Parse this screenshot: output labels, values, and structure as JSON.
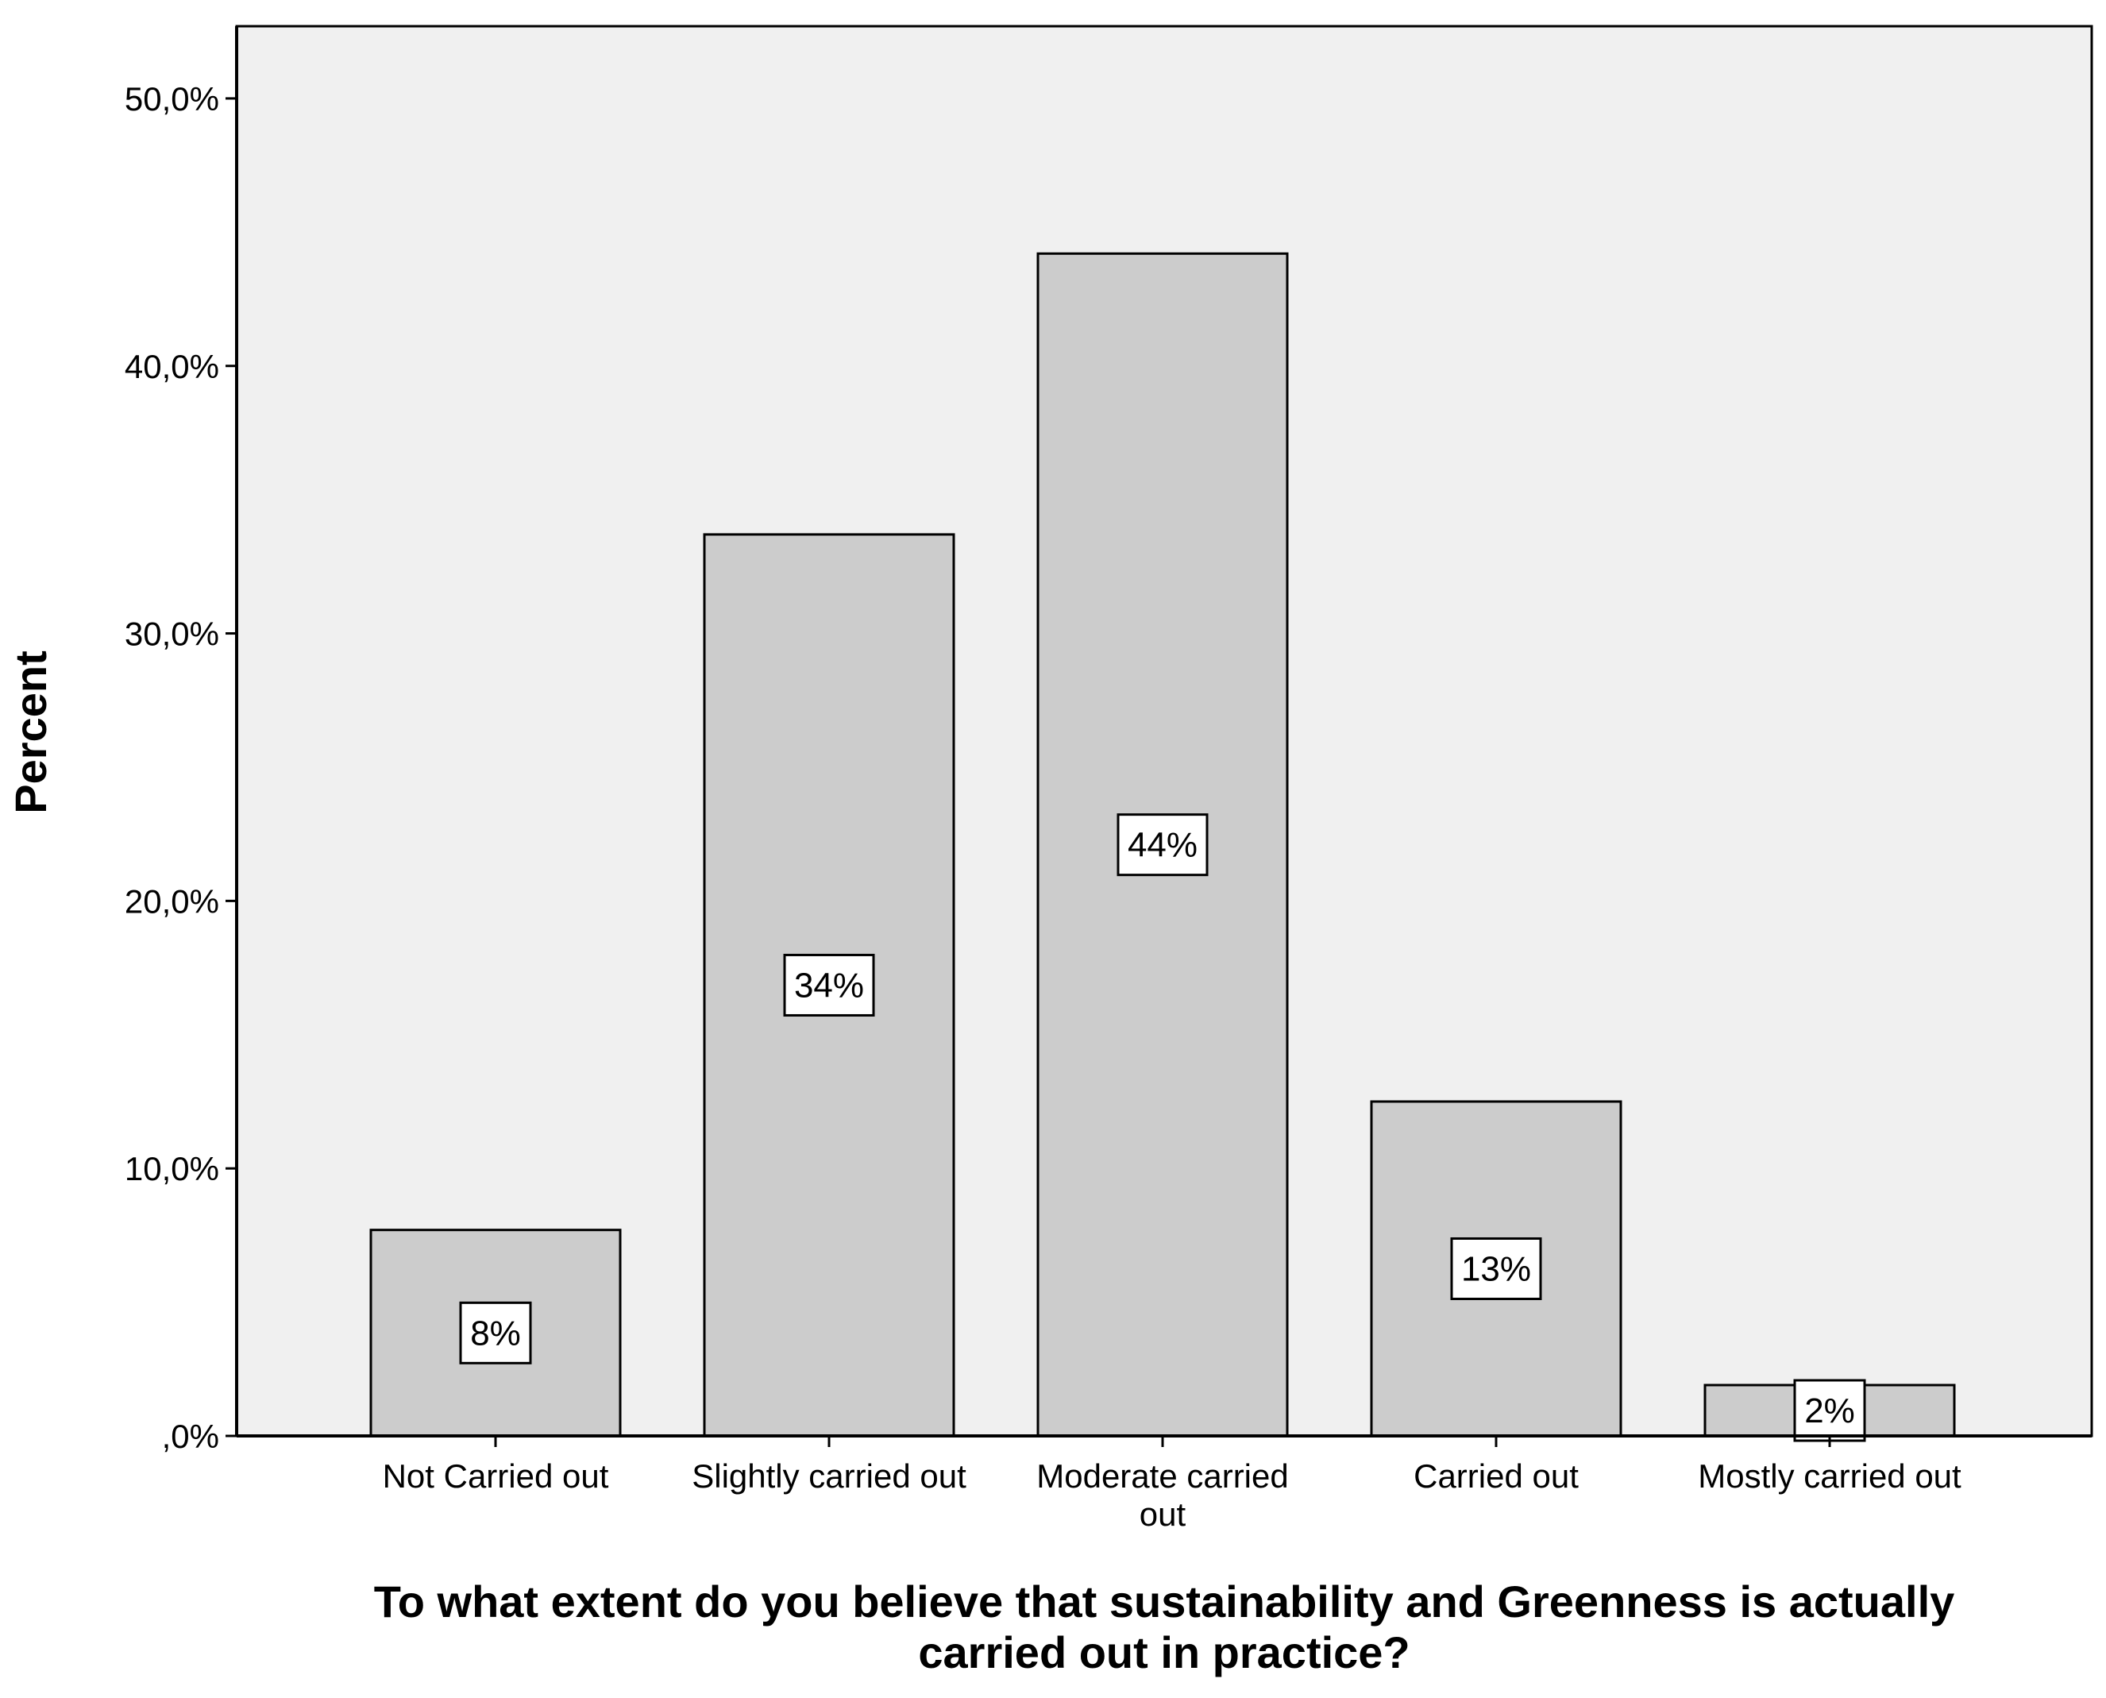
{
  "chart_data": {
    "type": "bar",
    "categories": [
      [
        "Not Carried out"
      ],
      [
        "Slightly carried out"
      ],
      [
        "Moderate carried",
        "out"
      ],
      [
        "Carried out"
      ],
      [
        "Mostly carried out"
      ]
    ],
    "values": [
      7.7,
      33.7,
      44.2,
      12.5,
      1.9
    ],
    "data_labels": [
      "8%",
      "34%",
      "44%",
      "13%",
      "2%"
    ],
    "ylabel": "Percent",
    "xlabel": [
      "To what extent do you believe that sustainability and Greenness is actually",
      "carried out in practice?"
    ],
    "ylim": [
      0,
      52.7
    ],
    "yticks": [
      0,
      10,
      20,
      30,
      40,
      50
    ],
    "ytick_labels": [
      ",0%",
      "10,0%",
      "20,0%",
      "30,0%",
      "40,0%",
      "50,0%"
    ],
    "grid": false,
    "legend": "none",
    "colors": {
      "bar_fill": "#cccccc",
      "bar_stroke": "#000000",
      "plot_background": "#f0f0f0",
      "label_box": "#ffffff"
    }
  }
}
